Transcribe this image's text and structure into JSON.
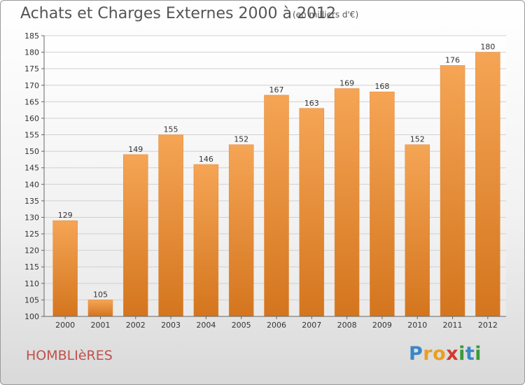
{
  "header": {
    "title": "Achats et Charges Externes 2000 à 2012",
    "subtitle": "(en milliers d'€)"
  },
  "footer": {
    "place": "HOMBLIèRES",
    "logo_letters": [
      "P",
      "r",
      "o",
      "x",
      "i",
      "t",
      "i"
    ],
    "logo_colors": [
      "#3a87c8",
      "#e8a020",
      "#e8a020",
      "#d03a2f",
      "#3a9a3a",
      "#3a87c8",
      "#3a9a3a"
    ]
  },
  "chart_data": {
    "type": "bar",
    "categories": [
      "2000",
      "2001",
      "2002",
      "2003",
      "2004",
      "2005",
      "2006",
      "2007",
      "2008",
      "2009",
      "2010",
      "2011",
      "2012"
    ],
    "values": [
      129,
      105,
      149,
      155,
      146,
      152,
      167,
      163,
      169,
      168,
      152,
      176,
      180
    ],
    "ylim": [
      100,
      185
    ],
    "yticks": [
      100,
      105,
      110,
      115,
      120,
      125,
      130,
      135,
      140,
      145,
      150,
      155,
      160,
      165,
      170,
      175,
      180,
      185
    ],
    "grid": true,
    "bar_color_top": "#f5a555",
    "bar_color_bottom": "#d4751e"
  }
}
